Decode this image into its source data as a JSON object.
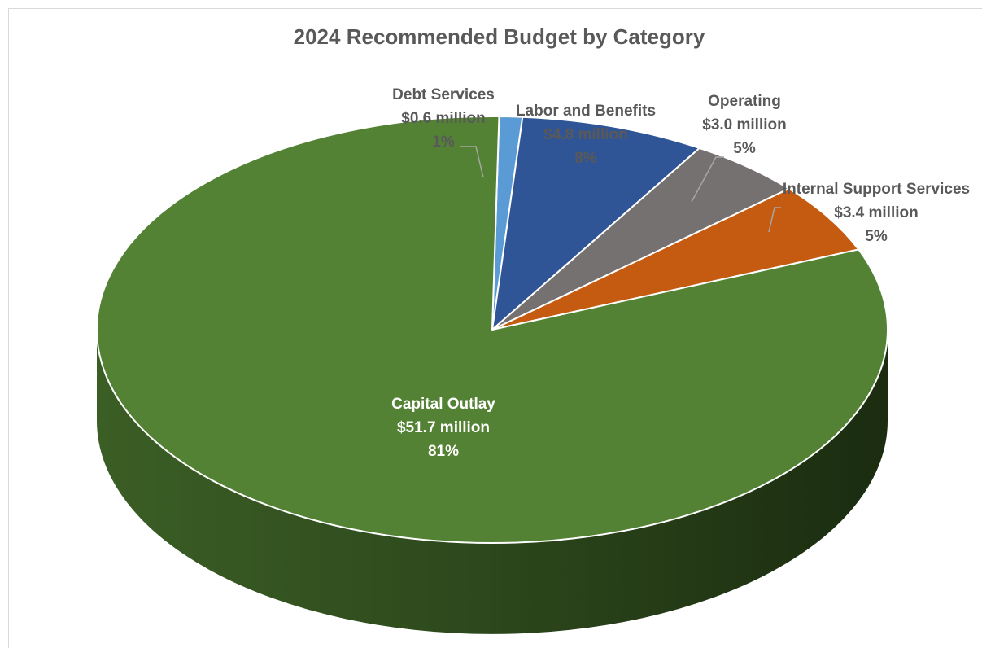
{
  "chart_data": {
    "type": "pie",
    "title": "2024 Recommended Budget by Category",
    "slices": [
      {
        "name": "Debt Services",
        "amount": "$0.6 million",
        "pct_label": "1%",
        "value": 0.6,
        "color": "#5b9bd5"
      },
      {
        "name": "Labor and Benefits",
        "amount": "$4.8 million",
        "pct_label": "8%",
        "value": 4.8,
        "color": "#2f5597"
      },
      {
        "name": "Operating",
        "amount": "$3.0 million",
        "pct_label": "5%",
        "value": 3.0,
        "color": "#767171"
      },
      {
        "name": "Internal Support Services",
        "amount": "$3.4 million",
        "pct_label": "5%",
        "value": 3.4,
        "color": "#c55a11"
      },
      {
        "name": "Capital Outlay",
        "amount": "$51.7 million",
        "pct_label": "81%",
        "value": 51.7,
        "color": "#548235"
      }
    ]
  }
}
